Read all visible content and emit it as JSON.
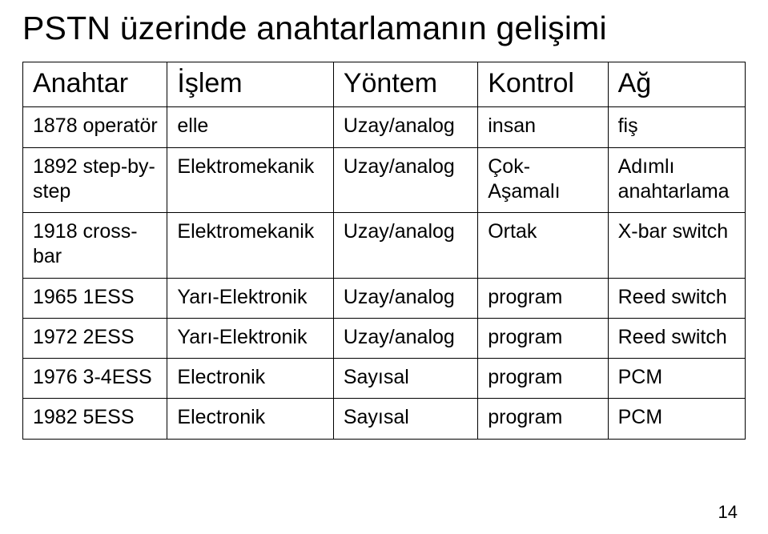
{
  "title": "PSTN üzerinde anahtarlamanın gelişimi",
  "table": {
    "headers": [
      "Anahtar",
      "İşlem",
      "Yöntem",
      "Kontrol",
      "Ağ"
    ],
    "rows": [
      [
        "1878 operatör",
        "elle",
        "Uzay/analog",
        "insan",
        "fiş"
      ],
      [
        "1892 step-by-step",
        "Elektromekanik",
        "Uzay/analog",
        "Çok-Aşamalı",
        "Adımlı anahtarlama"
      ],
      [
        "1918 cross-bar",
        "Elektromekanik",
        "Uzay/analog",
        "Ortak",
        "X-bar switch"
      ],
      [
        "1965 1ESS",
        "Yarı-Elektronik",
        "Uzay/analog",
        "program",
        "Reed switch"
      ],
      [
        "1972 2ESS",
        "Yarı-Elektronik",
        "Uzay/analog",
        "program",
        "Reed switch"
      ],
      [
        "1976 3-4ESS",
        "Electronik",
        "Sayısal",
        "program",
        "PCM"
      ],
      [
        "1982 5ESS",
        "Electronik",
        "Sayısal",
        "program",
        "PCM"
      ]
    ]
  },
  "pageNumber": "14",
  "style": {
    "background_color": "#ffffff",
    "text_color": "#000000",
    "border_color": "#000000",
    "title_fontsize": 41,
    "header_fontsize": 34,
    "cell_fontsize": 25,
    "pagenum_fontsize": 22,
    "font_family": "Arial"
  }
}
